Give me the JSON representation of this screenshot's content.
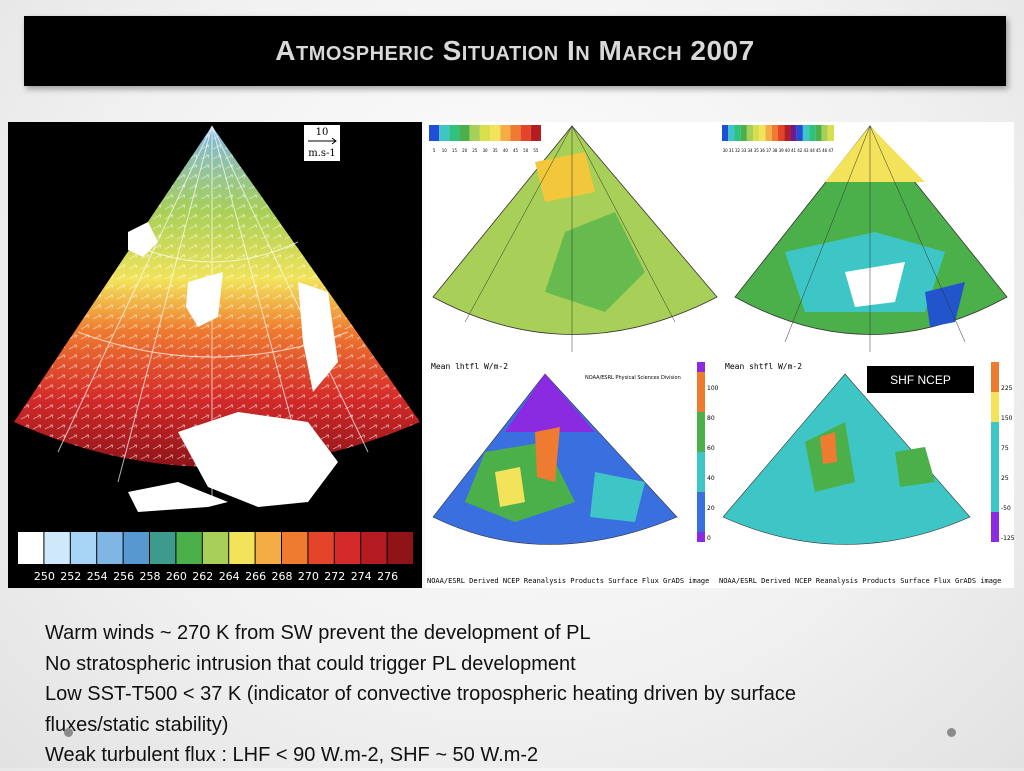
{
  "slide": {
    "title": "Atmospheric Situation In March 2007",
    "label_box": "SHF NCEP",
    "bullets": [
      "Warm winds ~ 270 K from SW prevent the development of PL",
      "No stratospheric intrusion that could trigger PL development",
      "Low SST-T500  < 37 K (indicator of convective tropospheric heating driven by surface",
      "fluxes/static stability)",
      "Weak turbulent flux : LHF < 90 W.m-2, SHF ~ 50 W.m-2"
    ]
  },
  "wind_map": {
    "scale_value": "10",
    "scale_unit": "m.s-1",
    "colorbar_labels": [
      "250",
      "252",
      "254",
      "256",
      "258",
      "260",
      "262",
      "264",
      "266",
      "268",
      "270",
      "272",
      "274",
      "276"
    ],
    "colorbar_colors": [
      "#ffffff",
      "#cfe8fa",
      "#a8d4f5",
      "#7fb6e3",
      "#5698d0",
      "#3e9a8c",
      "#4cb04a",
      "#a8cf57",
      "#f2e35a",
      "#f4ad45",
      "#ef7b30",
      "#e4442a",
      "#d42a2a",
      "#b51c22",
      "#8e1418"
    ]
  },
  "small_maps": {
    "top_left_labels": [
      "5",
      "10",
      "15",
      "20",
      "25",
      "30",
      "35",
      "40",
      "45",
      "50",
      "55"
    ],
    "top_right_labels": [
      "30",
      "31",
      "32",
      "33",
      "34",
      "35",
      "36",
      "37",
      "38",
      "39",
      "40",
      "41",
      "42",
      "43",
      "44",
      "45",
      "46",
      "47"
    ],
    "lhf_title": "Mean lhtfl W/m-2",
    "lhf_credit": "NOAA/ESRL Physical Sciences Division",
    "shf_title": "Mean shtfl W/m-2",
    "lhf_scale": [
      "100",
      "80",
      "60",
      "40",
      "20",
      "0"
    ],
    "shf_scale": [
      "225",
      "150",
      "75",
      "25",
      "-50",
      "-125"
    ],
    "footer_left": "NOAA/ESRL Derived NCEP Reanalysis Products Surface Flux GrADS image",
    "footer_right": "NOAA/ESRL Derived NCEP Reanalysis Products Surface Flux GrADS image"
  }
}
